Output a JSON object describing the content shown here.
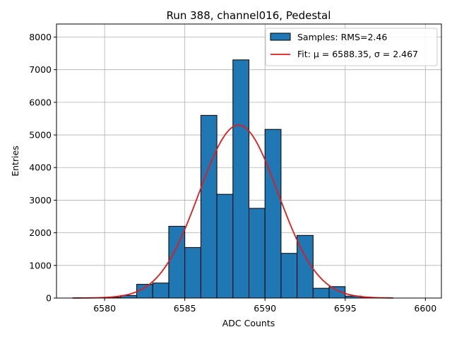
{
  "chart_data": {
    "type": "bar",
    "title": "Run 388, channel016, Pedestal",
    "xlabel": "ADC Counts",
    "ylabel": "Entries",
    "xlim": [
      6577,
      6601
    ],
    "ylim": [
      0,
      8400
    ],
    "xticks": [
      6580,
      6585,
      6590,
      6595,
      6600
    ],
    "yticks": [
      0,
      1000,
      2000,
      3000,
      4000,
      5000,
      6000,
      7000,
      8000
    ],
    "grid": true,
    "legend_position": "top-right",
    "histogram": {
      "name": "Samples: RMS=2.46",
      "color": "#1f77b4",
      "edgecolor": "#000000",
      "bin_width": 1,
      "bin_starts": [
        6579,
        6580,
        6581,
        6582,
        6583,
        6584,
        6585,
        6586,
        6587,
        6588,
        6589,
        6590,
        6591,
        6592,
        6593,
        6594,
        6595,
        6596
      ],
      "values": [
        5,
        20,
        80,
        420,
        460,
        2200,
        1550,
        5600,
        3180,
        7300,
        2750,
        5170,
        1370,
        1920,
        300,
        350,
        60,
        10
      ]
    },
    "fit": {
      "name": "Fit: μ = 6588.35, σ = 2.467",
      "color": "#e31a1c",
      "mu": 6588.35,
      "sigma": 2.467,
      "amplitude": 5300,
      "x_range": [
        6578,
        6598
      ]
    }
  }
}
